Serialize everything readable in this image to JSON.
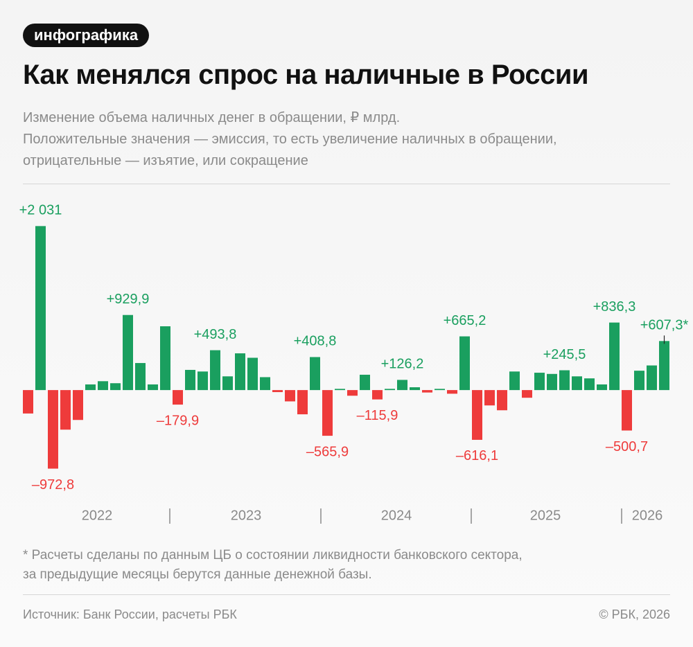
{
  "header": {
    "badge": "инфографика",
    "title": "Как менялся спрос на наличные в России",
    "subtitle": [
      "Изменение объема наличных денег в обращении, ₽ млрд.",
      "Положительные значения — эмиссия, то есть увеличение наличных в обращении,",
      "отрицательные — изъятие, или сокращение"
    ]
  },
  "chart_data": {
    "type": "bar",
    "categories": [
      null,
      null,
      null,
      null,
      null,
      null,
      null,
      null,
      null,
      null,
      null,
      null,
      null,
      null,
      null,
      null,
      null,
      null,
      null,
      null,
      null,
      null,
      null,
      null,
      null,
      null,
      null,
      null,
      null,
      null,
      null,
      null,
      null,
      null,
      null,
      null,
      null,
      null,
      null,
      null,
      null,
      null,
      null,
      null,
      null,
      null,
      null,
      null,
      null,
      null,
      null,
      null
    ],
    "values": [
      -290,
      2031,
      -972.8,
      -490,
      -370,
      70,
      110,
      85,
      929.9,
      335,
      70,
      790,
      -179.9,
      250,
      230,
      493.8,
      170,
      455,
      400,
      160,
      -25,
      -140,
      -300,
      408.8,
      -565.9,
      15,
      -70,
      190,
      -115.9,
      15,
      126.2,
      35,
      -30,
      15,
      -45,
      665.2,
      -616.1,
      -190,
      -250,
      230,
      -95,
      215,
      200,
      245.5,
      170,
      145,
      70,
      836.3,
      -500.7,
      240,
      305,
      607.3
    ],
    "value_labels": [
      null,
      "+2 031",
      "–972,8",
      null,
      null,
      null,
      null,
      null,
      "+929,9",
      null,
      null,
      null,
      "–179,9",
      null,
      null,
      "+493,8",
      null,
      null,
      null,
      null,
      null,
      null,
      null,
      "+408,8",
      "–565,9",
      null,
      null,
      null,
      "–115,9",
      null,
      "+126,2",
      null,
      null,
      null,
      null,
      "+665,2",
      "–616,1",
      null,
      null,
      null,
      null,
      null,
      null,
      "+245,5",
      null,
      null,
      null,
      "+836,3",
      "–500,7",
      null,
      null,
      "+607,3*"
    ],
    "positive_color": "#1a9f5f",
    "negative_color": "#ee3b3b",
    "ylim": [
      -1200,
      2300
    ],
    "year_labels": [
      "2022",
      "2023",
      "2024",
      "2025",
      "2026"
    ]
  },
  "footnote": [
    "* Расчеты сделаны по данным ЦБ о состоянии ликвидности банковского сектора,",
    "за предыдущие месяцы берутся данные денежной базы."
  ],
  "source": "Источник: Банк России, расчеты РБК",
  "copyright": "© РБК, 2026"
}
